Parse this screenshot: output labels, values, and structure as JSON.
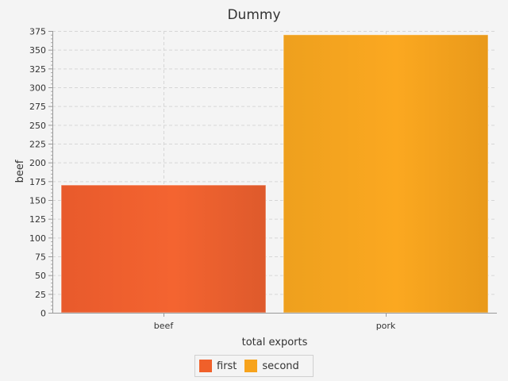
{
  "chart_data": {
    "type": "bar",
    "title": "Dummy",
    "xlabel": "total exports",
    "ylabel": "beef",
    "categories": [
      "beef",
      "pork"
    ],
    "series": [
      {
        "name": "first",
        "values": [
          170,
          null
        ],
        "color": "#f0602a"
      },
      {
        "name": "second",
        "values": [
          null,
          370
        ],
        "color": "#f7a31c"
      }
    ],
    "ylim": [
      0,
      375
    ],
    "yticks": [
      0,
      25,
      50,
      75,
      100,
      125,
      150,
      175,
      200,
      225,
      250,
      275,
      300,
      325,
      350,
      375
    ],
    "grid": true,
    "legend_position": "bottom"
  }
}
